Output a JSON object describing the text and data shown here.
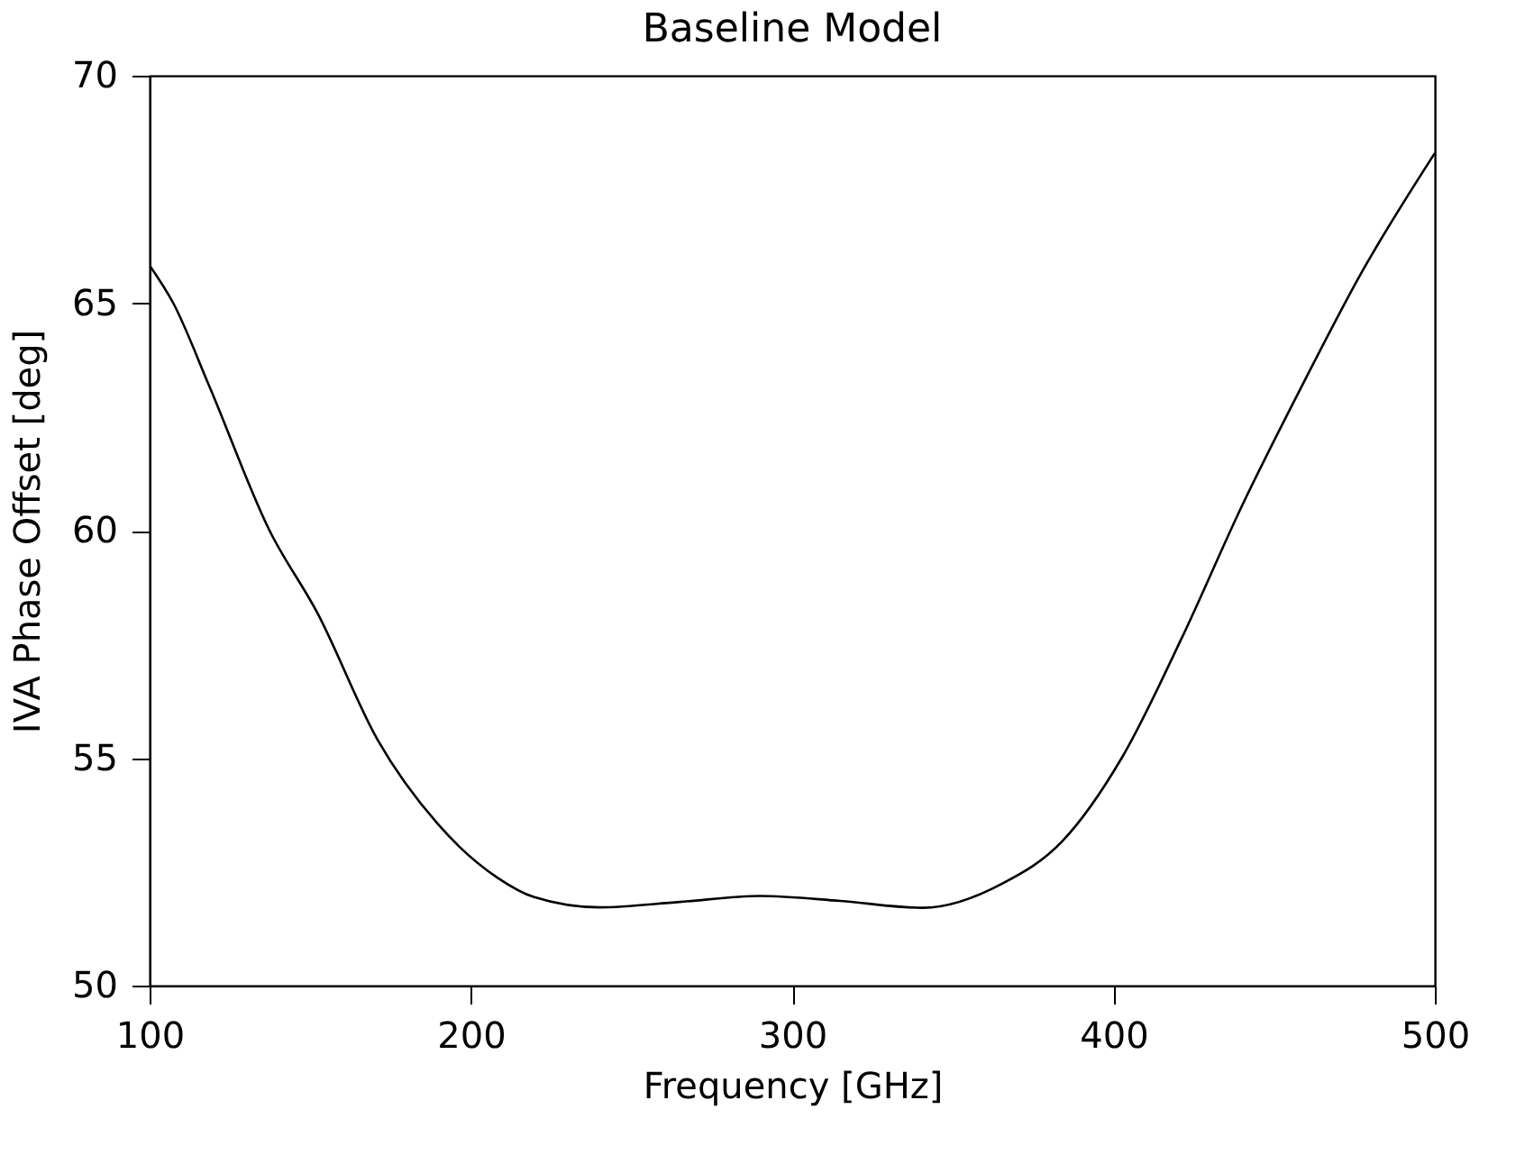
{
  "chart_data": {
    "type": "line",
    "title": "Baseline Model",
    "xlabel": "Frequency [GHz]",
    "ylabel": "IVA Phase Offset [deg]",
    "xlim": [
      100,
      500
    ],
    "xticks": [
      100,
      200,
      300,
      400,
      500
    ],
    "ylim": [
      50,
      70
    ],
    "yticks": [
      50,
      55,
      60,
      65,
      70
    ],
    "grid": false,
    "marker": "none",
    "line_style": "solid",
    "series": [
      {
        "color": "#000000",
        "x": [
          100,
          107.3,
          118.5,
          137.2,
          152.3,
          170.9,
          189.6,
          208.3,
          219.5,
          240,
          265,
          290,
          315,
          340.6,
          365.3,
          384,
          402.6,
          421.3,
          440,
          458.7,
          477.4,
          500
        ],
        "values": [
          65.83,
          65.01,
          63.19,
          60.02,
          58.18,
          55.41,
          53.56,
          52.37,
          51.95,
          51.72,
          51.84,
          51.97,
          51.86,
          51.71,
          52.24,
          53.17,
          55.01,
          57.65,
          60.55,
          63.19,
          65.7,
          68.3
        ]
      }
    ]
  }
}
